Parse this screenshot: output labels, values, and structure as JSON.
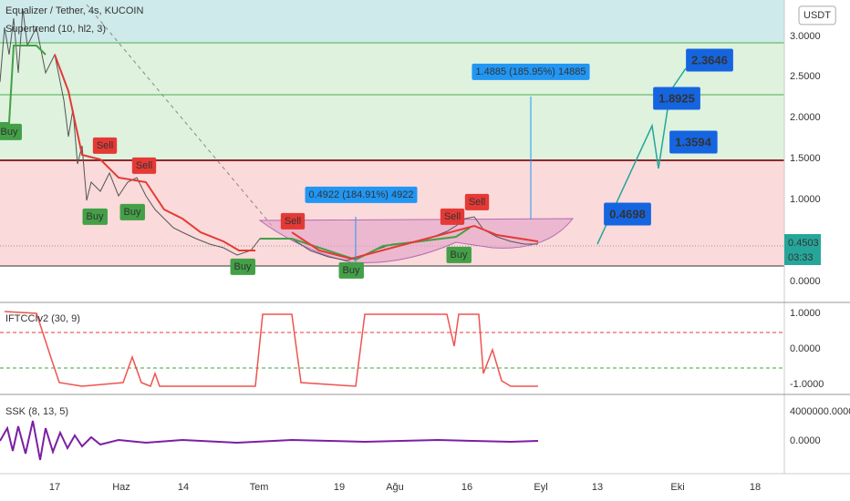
{
  "header": {
    "symbol": "Equalizer / Tether, 4s, KUCOIN",
    "indicator": "Supertrend (10, hl2, 3)",
    "currency": "USDT"
  },
  "price_axis": [
    "3.0000",
    "2.5000",
    "2.0000",
    "1.5000",
    "1.0000",
    "0.0000"
  ],
  "last_price": {
    "value": "0.4503",
    "countdown": "03:33"
  },
  "signals": [
    "Buy",
    "Sell",
    "Sell",
    "Buy",
    "Buy",
    "Buy",
    "Sell",
    "Buy",
    "Sell",
    "Sell",
    "Buy"
  ],
  "annotations": [
    "0.4922 (184.91%) 4922",
    "1.4885 (185.95%) 14885"
  ],
  "targets": [
    "0.4698",
    "1.3594",
    "1.8925",
    "2.3646"
  ],
  "oscillator": {
    "label": "IFTCCIv2 (30, 9)",
    "axis": [
      "1.0000",
      "0.0000",
      "-1.0000"
    ]
  },
  "ssk": {
    "label": "SSK (8, 13, 5)",
    "axis": [
      "4000000.0000",
      "0.0000"
    ]
  },
  "time_axis": [
    "17",
    "Haz",
    "14",
    "Tem",
    "19",
    "Ağu",
    "16",
    "Eyl",
    "13",
    "Eki",
    "18"
  ]
}
